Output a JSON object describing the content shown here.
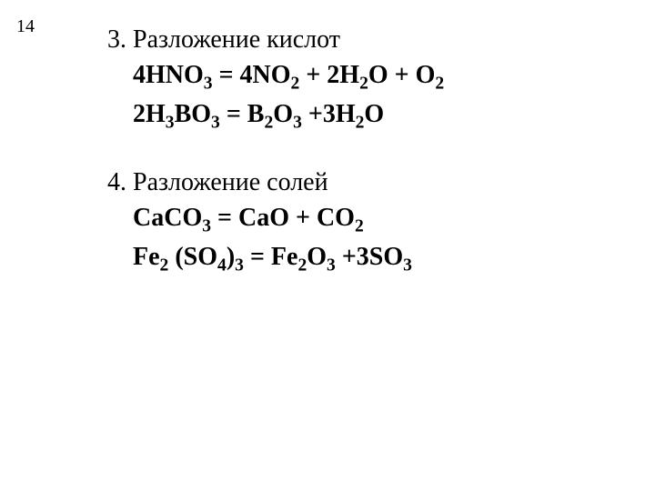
{
  "page_number": "14",
  "sections": [
    {
      "number": "3.",
      "title": "Разложение кислот",
      "equations": [
        {
          "tokens": [
            {
              "t": "4HNO"
            },
            {
              "t": "3",
              "sub": true
            },
            {
              "t": " = 4NO"
            },
            {
              "t": "2",
              "sub": true
            },
            {
              "t": " + 2H"
            },
            {
              "t": "2",
              "sub": true
            },
            {
              "t": "O + O"
            },
            {
              "t": "2",
              "sub": true
            }
          ]
        },
        {
          "tokens": [
            {
              "t": "2H"
            },
            {
              "t": "3",
              "sub": true
            },
            {
              "t": "BO"
            },
            {
              "t": "3",
              "sub": true
            },
            {
              "t": " = B"
            },
            {
              "t": "2",
              "sub": true
            },
            {
              "t": "O"
            },
            {
              "t": "3",
              "sub": true
            },
            {
              "t": " +3H"
            },
            {
              "t": "2",
              "sub": true
            },
            {
              "t": "O"
            }
          ]
        }
      ]
    },
    {
      "number": "4.",
      "title": "Разложение солей",
      "equations": [
        {
          "tokens": [
            {
              "t": "CaCO"
            },
            {
              "t": "3",
              "sub": true
            },
            {
              "t": " = CaO + CO"
            },
            {
              "t": "2",
              "sub": true
            }
          ]
        },
        {
          "tokens": [
            {
              "t": "Fe"
            },
            {
              "t": "2",
              "sub": true
            },
            {
              "t": " (SO"
            },
            {
              "t": "4",
              "sub": true
            },
            {
              "t": ")"
            },
            {
              "t": "3",
              "sub": true
            },
            {
              "t": " = Fe"
            },
            {
              "t": "2",
              "sub": true
            },
            {
              "t": "O"
            },
            {
              "t": "3",
              "sub": true
            },
            {
              "t": " +3SO"
            },
            {
              "t": "3",
              "sub": true
            }
          ]
        }
      ]
    }
  ]
}
